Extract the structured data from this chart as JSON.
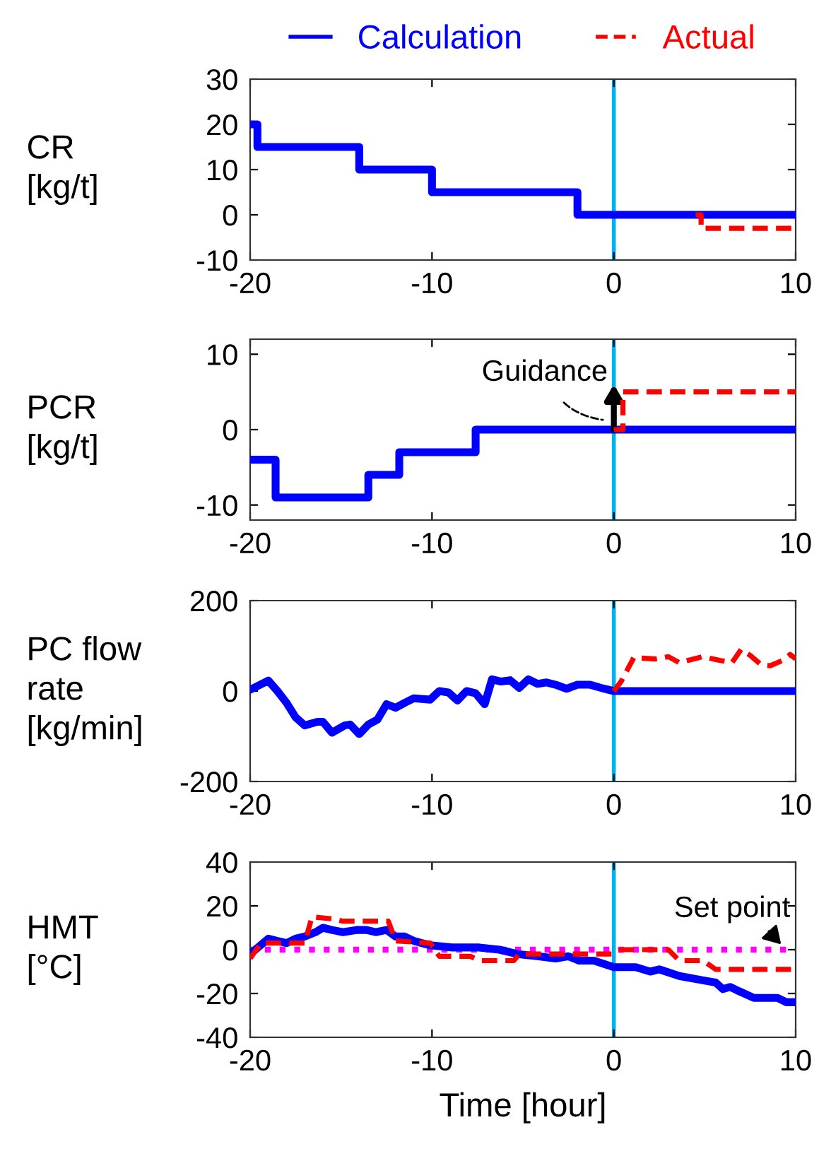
{
  "chart_data": [
    {
      "type": "step",
      "ylabel": "CR\n[kg/t]",
      "xlim": [
        -20,
        10
      ],
      "xticks": [
        -20,
        -10,
        0,
        10
      ],
      "ylim": [
        -10,
        30
      ],
      "yticks": [
        -10,
        0,
        10,
        20,
        30
      ],
      "legend": "top",
      "series": [
        {
          "name": "Calculation",
          "color": "#0000ff",
          "line_style": "solid",
          "x": [
            -20,
            -19.6,
            -14,
            -10,
            -2,
            10
          ],
          "values": [
            20,
            15,
            10,
            5,
            0,
            0
          ]
        },
        {
          "name": "Actual",
          "color": "#ff0000",
          "line_style": "dashed",
          "x": [
            4.5,
            4.8,
            10
          ],
          "values": [
            0,
            -3,
            -3
          ]
        }
      ],
      "ref_lines": [
        {
          "axis": "x",
          "value": 0,
          "color": "#00b0f0"
        }
      ]
    },
    {
      "type": "step",
      "ylabel": "PCR\n[kg/t]",
      "xlim": [
        -20,
        10
      ],
      "xticks": [
        -20,
        -10,
        0,
        10
      ],
      "ylim": [
        -12,
        12
      ],
      "yticks": [
        -10,
        0,
        10
      ],
      "series": [
        {
          "color": "#0000ff",
          "line_style": "solid",
          "x": [
            -20,
            -18.6,
            -13.5,
            -11.8,
            -7.6,
            10
          ],
          "values": [
            -4,
            -9,
            -6,
            -3,
            0,
            0
          ]
        },
        {
          "color": "#ff0000",
          "line_style": "dashed",
          "x": [
            0,
            0.5,
            10
          ],
          "values": [
            0,
            5,
            5
          ]
        }
      ],
      "ref_lines": [
        {
          "axis": "x",
          "value": 0,
          "color": "#00b0f0"
        }
      ],
      "annotations": [
        {
          "text": "Guidance",
          "x": 0,
          "y": 0
        }
      ]
    },
    {
      "type": "line",
      "ylabel": "PC flow\nrate\n[kg/min]",
      "xlim": [
        -20,
        10
      ],
      "xticks": [
        -20,
        -10,
        0,
        10
      ],
      "ylim": [
        -200,
        200
      ],
      "yticks": [
        -200,
        0,
        200
      ],
      "series": [
        {
          "color": "#0000ff",
          "line_style": "solid",
          "x": [
            -20,
            -19,
            -18.5,
            -18,
            -17.5,
            -17,
            -16.3,
            -16,
            -15.5,
            -14.8,
            -14.5,
            -14,
            -13.5,
            -13,
            -12.5,
            -12,
            -11.5,
            -11,
            -10.1,
            -9.6,
            -9.1,
            -8.6,
            -8.1,
            -7.6,
            -7.1,
            -6.7,
            -6.2,
            -5.7,
            -5.2,
            -4.7,
            -4.2,
            -3.7,
            -3.2,
            -2.6,
            -2.0,
            -1.3,
            -0.7,
            0,
            10
          ],
          "values": [
            3,
            23,
            0,
            -26,
            -58,
            -76,
            -68,
            -68,
            -92,
            -76,
            -74,
            -95,
            -74,
            -63,
            -29,
            -37,
            -26,
            -16,
            -19,
            0,
            -3,
            -21,
            0,
            -5,
            -29,
            26,
            21,
            24,
            7,
            26,
            16,
            19,
            14,
            5,
            14,
            14,
            7,
            0,
            0
          ]
        },
        {
          "color": "#ff0000",
          "line_style": "dashed",
          "x": [
            0,
            0.4,
            1.1,
            2.3,
            3.0,
            3.6,
            4.1,
            4.9,
            5.8,
            6.5,
            7.0,
            7.5,
            8.1,
            8.6,
            9.3,
            9.7,
            10
          ],
          "values": [
            0,
            21,
            74,
            71,
            76,
            63,
            68,
            76,
            68,
            63,
            92,
            79,
            58,
            56,
            68,
            81,
            71
          ]
        }
      ],
      "ref_lines": [
        {
          "axis": "x",
          "value": 0,
          "color": "#00b0f0"
        }
      ]
    },
    {
      "type": "line",
      "ylabel": "HMT\n[°C]",
      "xlabel": "Time [hour]",
      "xlim": [
        -20,
        10
      ],
      "xticks": [
        -20,
        -10,
        0,
        10
      ],
      "ylim": [
        -40,
        40
      ],
      "yticks": [
        -40,
        -20,
        0,
        20,
        40
      ],
      "series": [
        {
          "color": "#0000ff",
          "line_style": "solid",
          "x": [
            -20,
            -19,
            -18.5,
            -18,
            -17.5,
            -17,
            -16.4,
            -16,
            -15.5,
            -14.9,
            -14.1,
            -13.6,
            -13.1,
            -12.5,
            -12,
            -11.5,
            -11,
            -10.1,
            -8.9,
            -7.9,
            -7.4,
            -6.3,
            -5.3,
            -4.2,
            -3.2,
            -2.5,
            -1.9,
            -1.1,
            0,
            1.2,
            2.0,
            2.5,
            3.6,
            4.9,
            5.6,
            6.0,
            6.4,
            6.9,
            7.7,
            8.5,
            9.0,
            9.5,
            10
          ],
          "values": [
            -2,
            5,
            4,
            3,
            5,
            6,
            8,
            10,
            9,
            8,
            9,
            9,
            8,
            9,
            6,
            6,
            4,
            2,
            1,
            1,
            1,
            0,
            -2,
            -3,
            -4,
            -3,
            -5,
            -5,
            -8,
            -8,
            -10,
            -9,
            -12,
            -14,
            -15,
            -18,
            -17,
            -19,
            -22,
            -22,
            -22,
            -24,
            -24
          ]
        },
        {
          "color": "#ff0000",
          "line_style": "dashed",
          "x": [
            -20,
            -19.4,
            -17,
            -16.6,
            -15.4,
            -14.9,
            -12.4,
            -12,
            -10.1,
            -9.6,
            -7.9,
            -7.4,
            -5.5,
            -5.2,
            -2.5,
            -0.1,
            0.4,
            3.0,
            3.6,
            4.9,
            5.6,
            10
          ],
          "values": [
            -4,
            3,
            3,
            15,
            14,
            13,
            13,
            4,
            3,
            -3,
            -3,
            -5,
            -5,
            -2,
            -2,
            -2,
            0,
            0,
            -5,
            -5,
            -9,
            -9
          ]
        }
      ],
      "ref_lines": [
        {
          "axis": "x",
          "value": 0,
          "color": "#00b0f0"
        },
        {
          "axis": "y",
          "value": 0,
          "label": "Set point",
          "color": "#ff00ff",
          "line_style": "dotted"
        }
      ]
    }
  ]
}
